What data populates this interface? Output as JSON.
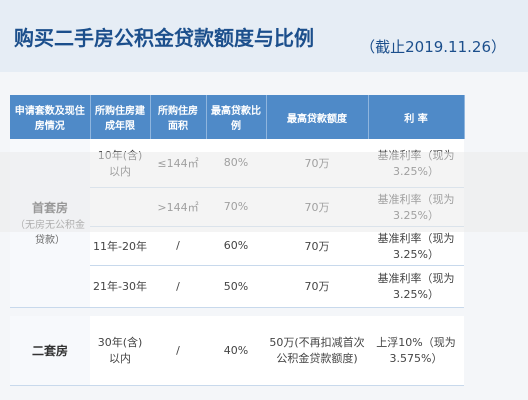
{
  "header": {
    "title": "购买二手房公积金贷款额度与比例",
    "date": "（截止2019.11.26）"
  },
  "table": {
    "columns": [
      "申请套数及现住房情况",
      "所购住房建成年限",
      "所购住房面积",
      "最高贷款比例",
      "最高贷款额度",
      "利 率"
    ],
    "groups": [
      {
        "label": "首套房",
        "sublabel": "（无房无公积金贷款）",
        "rows": [
          [
            "10年(含)以内",
            "≤144㎡",
            "80%",
            "70万",
            "基准利率（现为3.25%）"
          ],
          [
            "",
            ">144㎡",
            "70%",
            "70万",
            "基准利率（现为3.25%）"
          ],
          [
            "11年-20年",
            "/",
            "60%",
            "70万",
            "基准利率（现为3.25%）"
          ],
          [
            "21年-30年",
            "/",
            "50%",
            "70万",
            "基准利率（现为3.25%）"
          ]
        ]
      },
      {
        "label": "二套房",
        "sublabel": null,
        "rows": [
          [
            "30年(含)以内",
            "/",
            "40%",
            "50万(不再扣减首次公积金贷款额度)",
            "上浮10%（现为3.575%）"
          ]
        ]
      }
    ]
  }
}
